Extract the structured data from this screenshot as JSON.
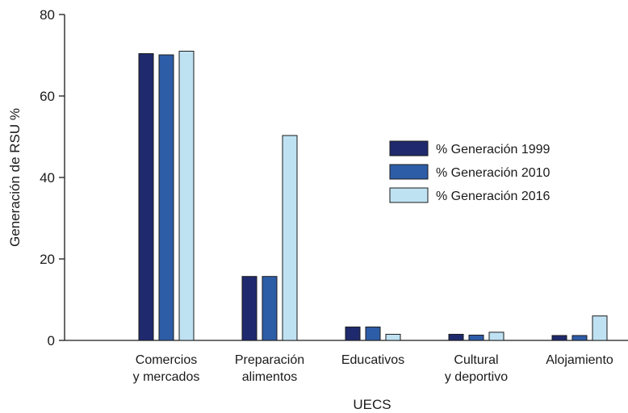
{
  "chart_data": {
    "type": "bar",
    "categories": [
      [
        "Comercios",
        "y mercados"
      ],
      [
        "Preparación",
        "alimentos"
      ],
      [
        "Educativos"
      ],
      [
        "Cultural",
        "y deportivo"
      ],
      [
        "Alojamiento"
      ]
    ],
    "series": [
      {
        "name": "% Generación 1999",
        "color": "#1f2a6e",
        "values": [
          70.4,
          15.7,
          3.3,
          1.5,
          1.2
        ]
      },
      {
        "name": "% Generación 2010",
        "color": "#2e5da8",
        "values": [
          70.1,
          15.7,
          3.3,
          1.3,
          1.2
        ]
      },
      {
        "name": "% Generación 2016",
        "color": "#bfe2f3",
        "values": [
          71.0,
          50.3,
          1.5,
          2.0,
          6.0
        ]
      }
    ],
    "xlabel": "UECS",
    "ylabel": "Generación de RSU %",
    "ylim": [
      0,
      80
    ],
    "yticks": [
      0,
      20,
      40,
      60,
      80
    ],
    "grid": false,
    "legend_position": "right"
  }
}
